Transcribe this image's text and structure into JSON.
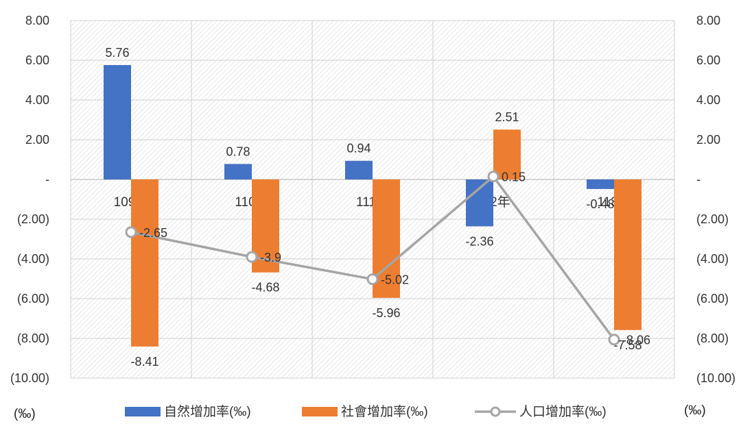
{
  "chart_data": {
    "type": "bar",
    "categories": [
      "109年",
      "110年",
      "111年",
      "112年",
      "113年"
    ],
    "series": [
      {
        "name": "自然增加率(‰)",
        "type": "bar",
        "color": "#4472C4",
        "values": [
          5.76,
          0.78,
          0.94,
          -2.36,
          -0.48
        ]
      },
      {
        "name": "社會增加率(‰)",
        "type": "bar",
        "color": "#ED7D31",
        "values": [
          -8.41,
          -4.68,
          -5.96,
          2.51,
          -7.58
        ]
      },
      {
        "name": "人口增加率(‰)",
        "type": "line",
        "color": "#A5A5A5",
        "values": [
          -2.65,
          -3.9,
          -5.02,
          0.15,
          -8.06
        ]
      }
    ],
    "ylim": [
      -10,
      8
    ],
    "ytick_values": [
      8,
      6,
      4,
      2,
      0,
      -2,
      -4,
      -6,
      -8,
      -10
    ],
    "ytick_labels": [
      "8.00",
      "6.00",
      "4.00",
      "2.00",
      "-",
      "(2.00)",
      "(4.00)",
      "(6.00)",
      "(8.00)",
      "(10.00)"
    ],
    "data_labels": {
      "自然增加率(‰)": [
        "5.76",
        "0.78",
        "0.94",
        "-2.36",
        "-0.48"
      ],
      "社會增加率(‰)": [
        "-8.41",
        "-4.68",
        "-5.96",
        "2.51",
        "-7.58"
      ],
      "人口增加率(‰)": [
        "-2.65",
        "-3.9",
        "-5.02",
        "0.15",
        "-8.06"
      ]
    },
    "left_unit": "(‰)",
    "right_unit": "(‰)",
    "grid": true,
    "legend_position": "bottom",
    "plot_background": "hatched",
    "title": "",
    "xlabel": "",
    "ylabel": ""
  }
}
